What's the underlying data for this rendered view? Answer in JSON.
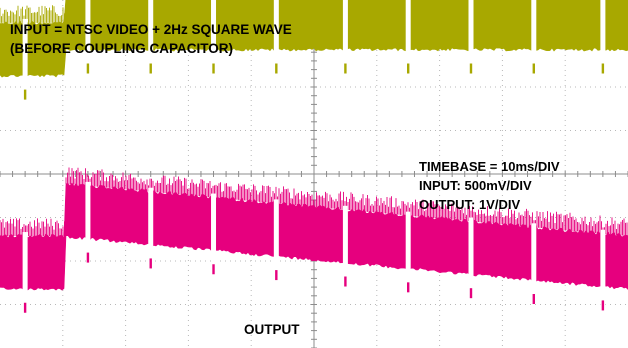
{
  "annotations": {
    "input_title_line1": "INPUT = NTSC VIDEO + 2Hz SQUARE WAVE",
    "input_title_line2": "(BEFORE COUPLING CAPACITOR)",
    "timebase": "TIMEBASE = 10ms/DIV",
    "input_scale": "INPUT: 500mV/DIV",
    "output_scale": "OUTPUT: 1V/DIV",
    "output_label": "OUTPUT"
  },
  "colors": {
    "input_trace": "#A8A800",
    "output_trace": "#E6007E",
    "grid": "#B8B8B8",
    "background": "#FFFFFF"
  },
  "chart_data": {
    "type": "line",
    "grid": true,
    "grid_divisions": {
      "x": 10,
      "y": 8
    },
    "series": [
      {
        "name": "INPUT",
        "color": "#A8A800",
        "level_low_div": 2.6,
        "level_high_div": 3.2,
        "step_time_div": 1.05,
        "vsync_pulse_times_div": [
          0.4,
          1.4,
          2.4,
          3.4,
          4.4,
          5.5,
          6.5,
          7.5,
          8.5,
          9.6
        ]
      },
      {
        "name": "OUTPUT",
        "color": "#E6007E",
        "level_before_step_div": -2.3,
        "level_after_step_div": -1.1,
        "level_end_div": -2.3,
        "step_time_div": 1.05,
        "vsync_pulse_times_div": [
          0.4,
          1.4,
          2.4,
          3.4,
          4.4,
          5.5,
          6.5,
          7.5,
          8.5,
          9.6
        ]
      }
    ]
  }
}
